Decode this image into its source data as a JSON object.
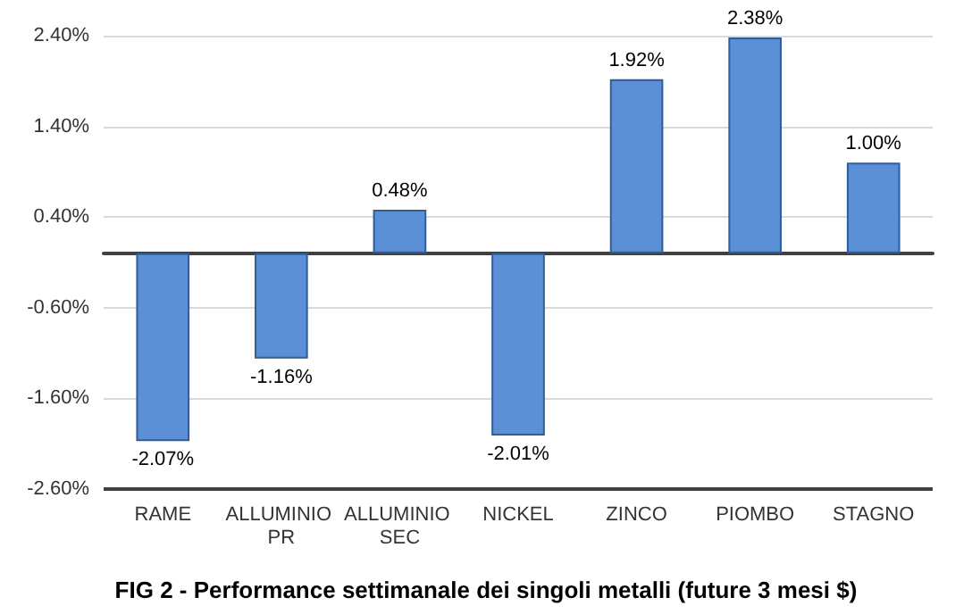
{
  "chart_data": {
    "type": "bar",
    "title": "FIG 2 - Performance settimanale dei singoli metalli (future 3 mesi $)",
    "categories": [
      "RAME",
      "ALLUMINIO PR",
      "ALLUMINIO SEC",
      "NICKEL",
      "ZINCO",
      "PIOMBO",
      "STAGNO"
    ],
    "values": [
      -2.07,
      -1.16,
      0.48,
      -2.01,
      1.92,
      2.38,
      1.0
    ],
    "value_labels": [
      "-2.07%",
      "-1.16%",
      "0.48%",
      "-2.01%",
      "1.92%",
      "2.38%",
      "1.00%"
    ],
    "color": "#5b8fd6",
    "ylim": [
      -2.6,
      2.4
    ],
    "yticks": [
      {
        "value": 2.4,
        "label": "2.40%"
      },
      {
        "value": 1.4,
        "label": "1.40%"
      },
      {
        "value": 0.4,
        "label": "0.40%"
      },
      {
        "value": -0.6,
        "label": "-0.60%"
      },
      {
        "value": -1.6,
        "label": "-1.60%"
      },
      {
        "value": -2.6,
        "label": "-2.60%"
      }
    ],
    "grid": "y"
  }
}
